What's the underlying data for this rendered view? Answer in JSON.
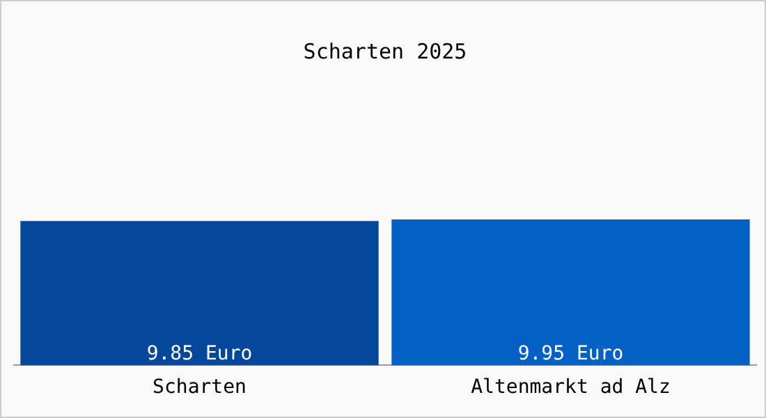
{
  "chart_data": {
    "type": "bar",
    "title": "Scharten 2025",
    "categories": [
      "Scharten",
      "Altenmarkt ad Alz"
    ],
    "values": [
      9.85,
      9.95
    ],
    "colors": [
      "#03489a",
      "#0360c4"
    ],
    "value_labels": [
      "9.85 Euro",
      "9.95 Euro"
    ],
    "tick_labels": "x",
    "grid": false,
    "legend": false
  }
}
